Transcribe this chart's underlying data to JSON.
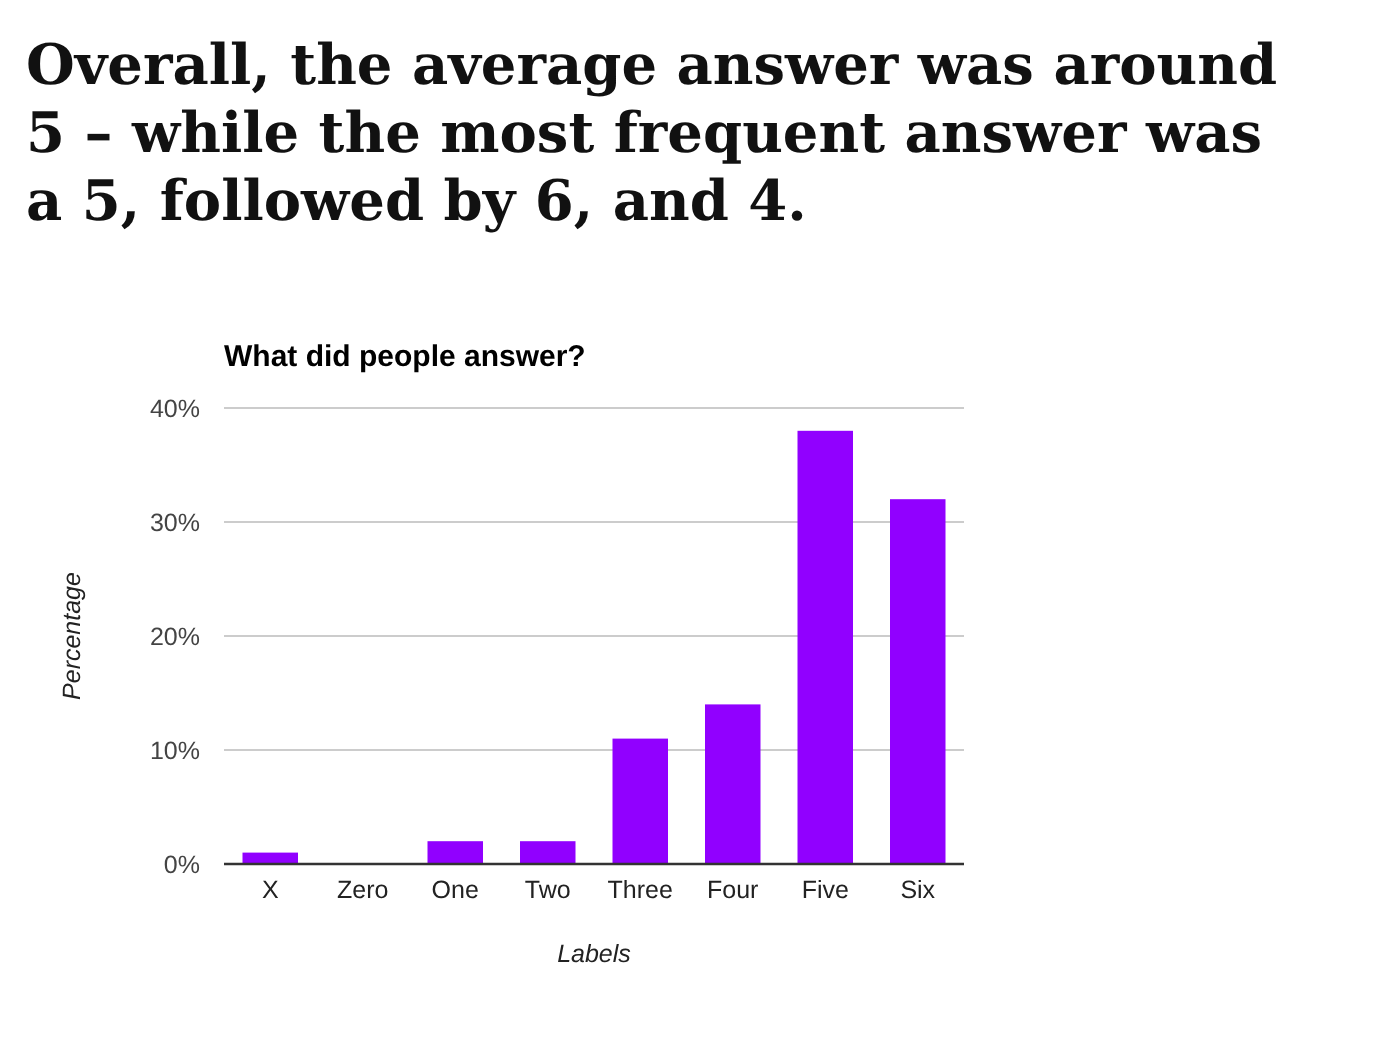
{
  "chart_data": {
    "type": "bar",
    "title": "Overall, the average answer was around 5 – while the most frequent answer was a 5, followed by 6, and 4.",
    "subtitle": "What did people answer?",
    "xlabel": "Labels",
    "ylabel": "Percentage",
    "categories": [
      "X",
      "Zero",
      "One",
      "Two",
      "Three",
      "Four",
      "Five",
      "Six"
    ],
    "values": [
      1,
      0,
      2,
      2,
      11,
      14,
      38,
      32
    ],
    "color": "#9100ff",
    "ylim": [
      0,
      40
    ],
    "yticks": [
      {
        "value": 0,
        "label": "0%"
      },
      {
        "value": 10,
        "label": "10%"
      },
      {
        "value": 20,
        "label": "20%"
      },
      {
        "value": 30,
        "label": "30%"
      },
      {
        "value": 40,
        "label": "40%"
      }
    ],
    "grid": "y"
  }
}
